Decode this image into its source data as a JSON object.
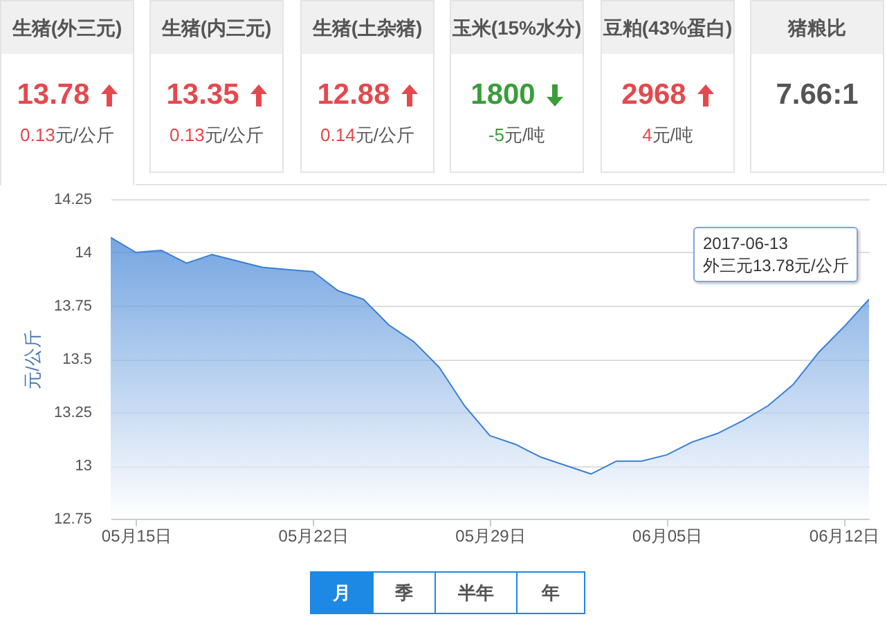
{
  "chart_data": [
    {
      "type": "other",
      "title": "生猪(外三元)",
      "annotations": [
        "13.78",
        "0.13元/公斤"
      ]
    },
    {
      "type": "other",
      "title": "生猪(内三元)",
      "annotations": [
        "13.35",
        "0.13元/公斤"
      ]
    },
    {
      "type": "other",
      "title": "生猪(土杂猪)",
      "annotations": [
        "12.88",
        "0.14元/公斤"
      ]
    },
    {
      "type": "other",
      "title": "玉米(15%水分)",
      "annotations": [
        "1800",
        "-5元/吨"
      ]
    },
    {
      "type": "other",
      "title": "豆粕(43%蛋白)",
      "annotations": [
        "2968",
        "4元/吨"
      ]
    },
    {
      "type": "other",
      "title": "猪粮比",
      "annotations": [
        "7.66:1"
      ]
    },
    {
      "type": "area",
      "ylabel": "元/公斤",
      "grid": "y",
      "x": [
        "2017-05-14",
        "2017-05-15",
        "2017-05-16",
        "2017-05-17",
        "2017-05-18",
        "2017-05-19",
        "2017-05-20",
        "2017-05-21",
        "2017-05-22",
        "2017-05-23",
        "2017-05-24",
        "2017-05-25",
        "2017-05-26",
        "2017-05-27",
        "2017-05-28",
        "2017-05-29",
        "2017-05-30",
        "2017-05-31",
        "2017-06-01",
        "2017-06-02",
        "2017-06-03",
        "2017-06-04",
        "2017-06-05",
        "2017-06-06",
        "2017-06-07",
        "2017-06-08",
        "2017-06-09",
        "2017-06-10",
        "2017-06-11",
        "2017-06-12",
        "2017-06-13"
      ],
      "series": [
        {
          "color": "#3a7fd5",
          "values": [
            14.07,
            14.0,
            14.01,
            13.95,
            13.99,
            13.96,
            13.93,
            13.92,
            13.91,
            13.82,
            13.78,
            13.66,
            13.58,
            13.46,
            13.28,
            13.14,
            13.1,
            13.04,
            13.0,
            12.96,
            13.02,
            13.02,
            13.05,
            13.11,
            13.15,
            13.21,
            13.28,
            13.38,
            13.53,
            13.65,
            13.78
          ]
        }
      ],
      "xlim": [
        "2017-05-14",
        "2017-06-13"
      ],
      "xticks": [
        {
          "value": "2017-05-15",
          "label": "05月15日"
        },
        {
          "value": "2017-05-22",
          "label": "05月22日"
        },
        {
          "value": "2017-05-29",
          "label": "05月29日"
        },
        {
          "value": "2017-06-05",
          "label": "06月05日"
        },
        {
          "value": "2017-06-12",
          "label": "06月12日"
        }
      ],
      "ylim": [
        12.75,
        14.25
      ],
      "yticks": [
        12.75,
        13,
        13.25,
        13.5,
        13.75,
        14,
        14.25
      ],
      "annotations": [
        {
          "text": "2017-06-13\n外三元13.78元/公斤",
          "x": "2017-06-13",
          "y": 13.78
        },
        "月",
        "季",
        "半年",
        "年"
      ]
    }
  ]
}
